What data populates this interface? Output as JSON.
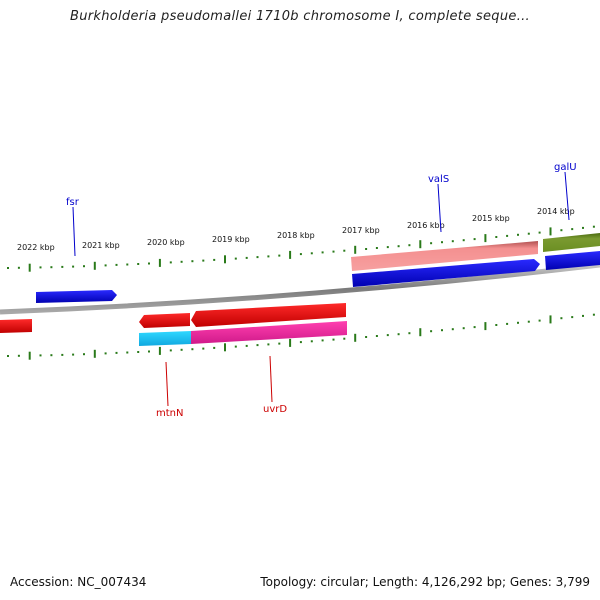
{
  "title": "Burkholderia pseudomallei 1710b chromosome I, complete seque...",
  "footer": {
    "accession": "Accession: NC_007434",
    "topology": "Topology: circular; Length: 4,126,292 bp; Genes: 3,799"
  },
  "scale_labels": [
    "2022 kbp",
    "2021 kbp",
    "2020 kbp",
    "2019 kbp",
    "2018 kbp",
    "2017 kbp",
    "2016 kbp",
    "2015 kbp",
    "2014 kbp"
  ],
  "genes": [
    {
      "name": "fsr",
      "strand": "forward",
      "color": "#0000cc"
    },
    {
      "name": "valS",
      "strand": "forward",
      "color": "#0000cc"
    },
    {
      "name": "galU",
      "strand": "forward",
      "color": "#0000cc"
    },
    {
      "name": "mtnN",
      "strand": "reverse",
      "color": "#cc0000"
    },
    {
      "name": "uvrD",
      "strand": "reverse",
      "color": "#cc0000"
    }
  ],
  "colors": {
    "forward_cds": "#0000ee",
    "reverse_cds": "#ee0000",
    "forward_feature_pink": "#f08080",
    "forward_feature_olive": "#6b8e23",
    "reverse_feature_cyan": "#1ec8f0",
    "reverse_feature_magenta": "#e8259a",
    "backbone": "#888888",
    "ticks": "#2a7a1a"
  }
}
